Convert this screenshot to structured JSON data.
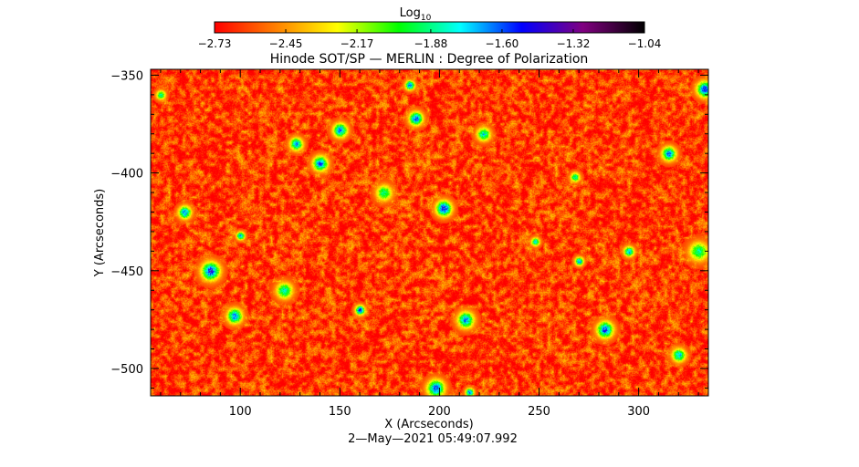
{
  "chart_data": {
    "type": "heatmap",
    "title": "Hinode SOT/SP — MERLIN : Degree of Polarization",
    "xlabel": "X (Arcseconds)",
    "ylabel": "Y (Arcseconds)",
    "timestamp": "2—May—2021 05:49:07.992",
    "xlim": [
      55,
      335
    ],
    "ylim": [
      -514,
      -347
    ],
    "x_ticks": [
      100,
      150,
      200,
      250,
      300
    ],
    "x_tick_labels": [
      "100",
      "150",
      "200",
      "250",
      "300"
    ],
    "y_ticks": [
      -350,
      -400,
      -450,
      -500
    ],
    "y_tick_labels": [
      "−350",
      "−400",
      "−450",
      "−500"
    ],
    "colorbar": {
      "label_base": "Log",
      "label_sub": "10",
      "range": [
        -2.73,
        -1.04
      ],
      "ticks": [
        -2.73,
        -2.45,
        -2.17,
        -1.88,
        -1.6,
        -1.32,
        -1.04
      ],
      "tick_labels": [
        "−2.73",
        "−2.45",
        "−2.17",
        "−1.88",
        "−1.60",
        "−1.32",
        "−1.04"
      ],
      "colors": [
        "#ff0000",
        "#ff8000",
        "#ffff00",
        "#00ff00",
        "#00ffff",
        "#0000ff",
        "#800080",
        "#000000"
      ]
    },
    "field": {
      "background_level": -2.62,
      "network_features": [
        {
          "x": 160,
          "y": -470,
          "level": -1.45
        },
        {
          "x": 202,
          "y": -418,
          "level": -1.4
        },
        {
          "x": 85,
          "y": -450,
          "level": -1.42
        },
        {
          "x": 283,
          "y": -480,
          "level": -1.48
        },
        {
          "x": 215,
          "y": -512,
          "level": -1.45
        },
        {
          "x": 198,
          "y": -510,
          "level": -1.5
        },
        {
          "x": 140,
          "y": -395,
          "level": -1.5
        },
        {
          "x": 185,
          "y": -355,
          "level": -1.5
        },
        {
          "x": 188,
          "y": -372,
          "level": -1.5
        },
        {
          "x": 333,
          "y": -357,
          "level": -1.45
        },
        {
          "x": 315,
          "y": -390,
          "level": -1.55
        },
        {
          "x": 72,
          "y": -420,
          "level": -1.55
        },
        {
          "x": 97,
          "y": -473,
          "level": -1.55
        },
        {
          "x": 270,
          "y": -445,
          "level": -1.55
        },
        {
          "x": 150,
          "y": -378,
          "level": -1.55
        },
        {
          "x": 128,
          "y": -385,
          "level": -1.6
        },
        {
          "x": 100,
          "y": -432,
          "level": -1.6
        },
        {
          "x": 213,
          "y": -475,
          "level": -1.6
        },
        {
          "x": 295,
          "y": -440,
          "level": -1.6
        },
        {
          "x": 320,
          "y": -493,
          "level": -1.65
        },
        {
          "x": 248,
          "y": -435,
          "level": -1.7
        },
        {
          "x": 222,
          "y": -380,
          "level": -1.7
        },
        {
          "x": 268,
          "y": -402,
          "level": -1.75
        },
        {
          "x": 122,
          "y": -460,
          "level": -1.75
        },
        {
          "x": 172,
          "y": -410,
          "level": -1.8
        },
        {
          "x": 330,
          "y": -440,
          "level": -1.8
        },
        {
          "x": 60,
          "y": -360,
          "level": -1.8
        }
      ]
    }
  }
}
